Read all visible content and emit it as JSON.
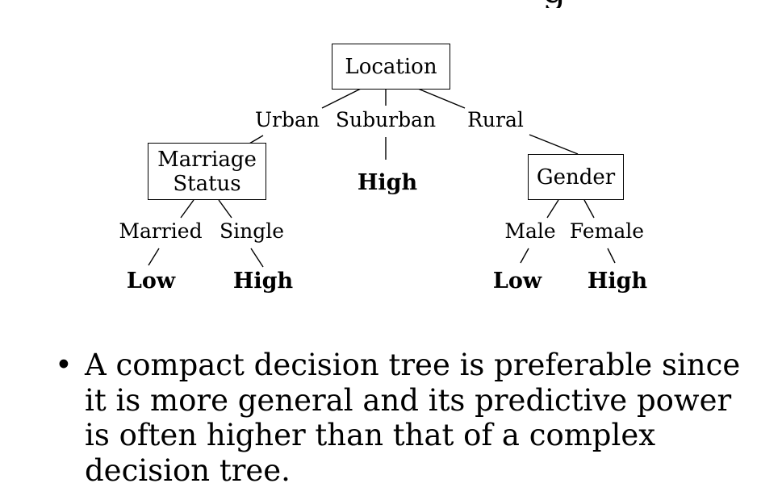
{
  "title_fragment": "g",
  "tree": {
    "root": "Location",
    "branches": {
      "urban": "Urban",
      "suburban": "Suburban",
      "rural": "Rural"
    },
    "marriage_node": "Marriage\nStatus",
    "suburban_leaf": "High",
    "gender_node": "Gender",
    "marriage_branches": {
      "married": "Married",
      "single": "Single"
    },
    "marriage_leaves": {
      "married": "Low",
      "single": "High"
    },
    "gender_branches": {
      "male": "Male",
      "female": "Female"
    },
    "gender_leaves": {
      "male": "Low",
      "female": "High"
    }
  },
  "bullet": {
    "marker": "•",
    "text": "A compact decision tree is preferable since it is more general and its predictive power is often higher than that of a complex decision tree."
  }
}
